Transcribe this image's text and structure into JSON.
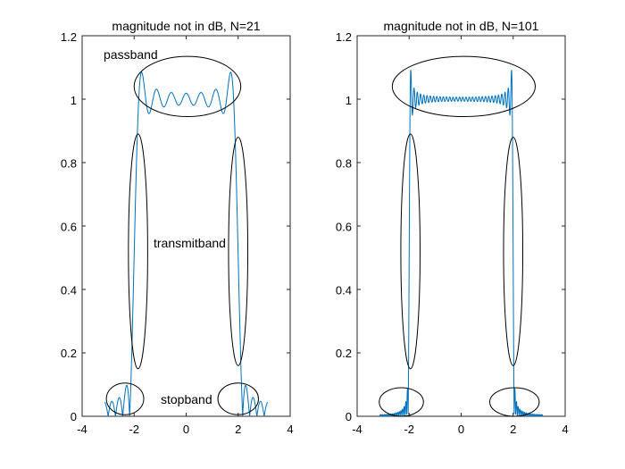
{
  "chart_data": [
    {
      "type": "line",
      "title": "magnitude not in dB, N=21",
      "xlabel": "",
      "ylabel": "",
      "xlim": [
        -4,
        4
      ],
      "ylim": [
        0,
        1.2
      ],
      "xticks": [
        -4,
        -2,
        0,
        2,
        4
      ],
      "yticks": [
        0,
        0.2,
        0.4,
        0.6,
        0.8,
        1,
        1.2
      ],
      "xtick_labels": [
        "-4",
        "-2",
        "0",
        "2",
        "4"
      ],
      "ytick_labels": [
        "0",
        "0.2",
        "0.4",
        "0.6",
        "0.8",
        "1",
        "1.2"
      ],
      "grid": false,
      "series_color": "#0072BD",
      "filter": {
        "N": 21,
        "cutoff": 2,
        "omega_range": [
          -3.1416,
          3.1416
        ],
        "shape": "lowpass"
      },
      "annotations": [
        {
          "text": "passband",
          "x": -1.95,
          "y": 1.13
        },
        {
          "text": "transmitband",
          "x": -0.55,
          "y": 0.545
        },
        {
          "text": "stopband",
          "x": 0.2,
          "y": 0.055
        }
      ],
      "ellipses": [
        {
          "cx": 0.05,
          "cy": 1.04,
          "rx": 2.05,
          "ry": 0.095
        },
        {
          "cx": -1.85,
          "cy": 0.52,
          "rx": 0.37,
          "ry": 0.37
        },
        {
          "cx": 2.0,
          "cy": 0.52,
          "rx": 0.37,
          "ry": 0.36
        },
        {
          "cx": -2.35,
          "cy": 0.055,
          "rx": 0.72,
          "ry": 0.05
        },
        {
          "cx": 2.0,
          "cy": 0.055,
          "rx": 0.78,
          "ry": 0.05
        }
      ]
    },
    {
      "type": "line",
      "title": "magnitude not in dB, N=101",
      "xlabel": "",
      "ylabel": "",
      "xlim": [
        -4,
        4
      ],
      "ylim": [
        0,
        1.2
      ],
      "xticks": [
        -4,
        -2,
        0,
        2,
        4
      ],
      "yticks": [
        0,
        0.2,
        0.4,
        0.6,
        0.8,
        1,
        1.2
      ],
      "xtick_labels": [
        "-4",
        "-2",
        "0",
        "2",
        "4"
      ],
      "ytick_labels": [
        "0",
        "0.2",
        "0.4",
        "0.6",
        "0.8",
        "1",
        "1.2"
      ],
      "grid": false,
      "series_color": "#0072BD",
      "filter": {
        "N": 101,
        "cutoff": 2,
        "omega_range": [
          -3.1416,
          3.1416
        ],
        "shape": "lowpass"
      },
      "annotations": [],
      "ellipses": [
        {
          "cx": 0.1,
          "cy": 1.04,
          "rx": 2.75,
          "ry": 0.095
        },
        {
          "cx": -1.95,
          "cy": 0.52,
          "rx": 0.37,
          "ry": 0.37
        },
        {
          "cx": 2.0,
          "cy": 0.52,
          "rx": 0.37,
          "ry": 0.36
        },
        {
          "cx": -2.3,
          "cy": 0.045,
          "rx": 0.85,
          "ry": 0.045
        },
        {
          "cx": 2.05,
          "cy": 0.045,
          "rx": 0.95,
          "ry": 0.045
        }
      ]
    }
  ]
}
